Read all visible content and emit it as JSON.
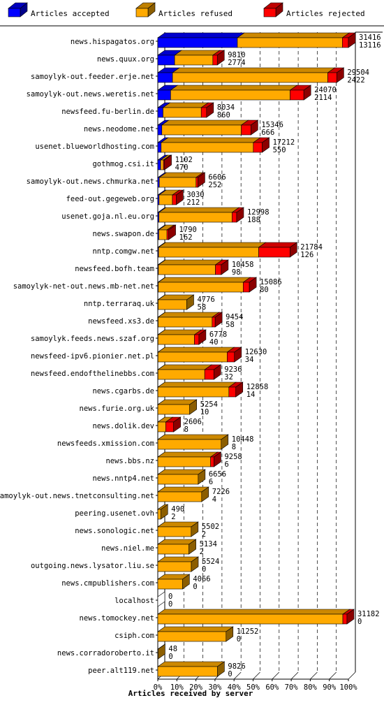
{
  "legend": [
    {
      "label": "Articles accepted",
      "color": "#0000ff",
      "dark": "#0000a0"
    },
    {
      "label": "Articles refused",
      "color": "#ffaa00",
      "dark": "#b07000"
    },
    {
      "label": "Articles rejected",
      "color": "#ff0000",
      "dark": "#a00000"
    }
  ],
  "chart_data": {
    "type": "bar",
    "orientation": "horizontal",
    "stacked": true,
    "xlabel": "Articles received by server",
    "x_ticks": [
      "0%",
      "10%",
      "20%",
      "30%",
      "40%",
      "50%",
      "60%",
      "70%",
      "80%",
      "90%",
      "100%"
    ],
    "scale_max": 31416,
    "categories": [
      "news.hispagatos.org",
      "news.quux.org",
      "samoylyk-out.feeder.erje.net",
      "samoylyk-out.news.weretis.net",
      "newsfeed.fu-berlin.de",
      "news.neodome.net",
      "usenet.blueworldhosting.com",
      "gothmog.csi.it",
      "samoylyk-out.news.chmurka.net",
      "feed-out.gegeweb.org",
      "usenet.goja.nl.eu.org",
      "news.swapon.de",
      "nntp.comgw.net",
      "newsfeed.bofh.team",
      "samoylyk-net-out.news.mb-net.net",
      "nntp.terraraq.uk",
      "newsfeed.xs3.de",
      "samoylyk.feeds.news.szaf.org",
      "newsfeed-ipv6.pionier.net.pl",
      "newsfeed.endofthelinebbs.com",
      "news.cgarbs.de",
      "news.furie.org.uk",
      "news.dolik.dev",
      "newsfeeds.xmission.com",
      "news.bbs.nz",
      "news.nntp4.net",
      "samoylyk-out.news.tnetconsulting.net",
      "peering.usenet.ovh",
      "news.sonologic.net",
      "news.niel.me",
      "outgoing.news.lysator.liu.se",
      "news.cmpublishers.com",
      "localhost",
      "news.tomockey.net",
      "csiph.com",
      "news.corradoroberto.it",
      "peer.alt119.net"
    ],
    "totals": [
      31416,
      9810,
      29504,
      24070,
      8034,
      15346,
      17212,
      1102,
      6606,
      3030,
      12998,
      1790,
      21784,
      10458,
      15086,
      4776,
      9454,
      6778,
      12630,
      9236,
      12858,
      5254,
      2606,
      10448,
      9258,
      6656,
      7226,
      490,
      5502,
      5134,
      5524,
      4066,
      0,
      31182,
      11252,
      48,
      9826
    ],
    "accepted_counts": [
      13116,
      2774,
      2422,
      2114,
      860,
      666,
      550,
      470,
      252,
      212,
      188,
      162,
      126,
      98,
      80,
      58,
      58,
      40,
      34,
      32,
      14,
      10,
      8,
      8,
      6,
      6,
      4,
      2,
      2,
      2,
      0,
      0,
      0,
      0,
      0,
      0,
      0
    ],
    "series": [
      {
        "name": "Articles accepted",
        "values": [
          13116,
          2774,
          2422,
          2114,
          860,
          666,
          550,
          470,
          252,
          212,
          188,
          162,
          126,
          98,
          80,
          58,
          58,
          40,
          34,
          32,
          14,
          10,
          8,
          8,
          6,
          6,
          4,
          2,
          2,
          2,
          0,
          0,
          0,
          0,
          0,
          0,
          0
        ]
      },
      {
        "name": "Articles refused",
        "values": [
          17300,
          6300,
          25600,
          19700,
          6300,
          13100,
          15200,
          460,
          6050,
          2200,
          12050,
          1350,
          16500,
          9400,
          14000,
          4718,
          8900,
          6000,
          11400,
          7700,
          11700,
          5244,
          1300,
          10440,
          8700,
          6650,
          7222,
          488,
          5500,
          5132,
          5524,
          4066,
          0,
          30500,
          11252,
          48,
          9826
        ]
      },
      {
        "name": "Articles rejected",
        "values": [
          1000,
          736,
          1482,
          2256,
          874,
          1580,
          1462,
          172,
          304,
          618,
          760,
          278,
          5158,
          960,
          1006,
          0,
          496,
          738,
          1196,
          1504,
          1144,
          0,
          1298,
          0,
          552,
          0,
          0,
          0,
          0,
          0,
          0,
          0,
          0,
          682,
          0,
          0,
          0
        ]
      }
    ]
  }
}
